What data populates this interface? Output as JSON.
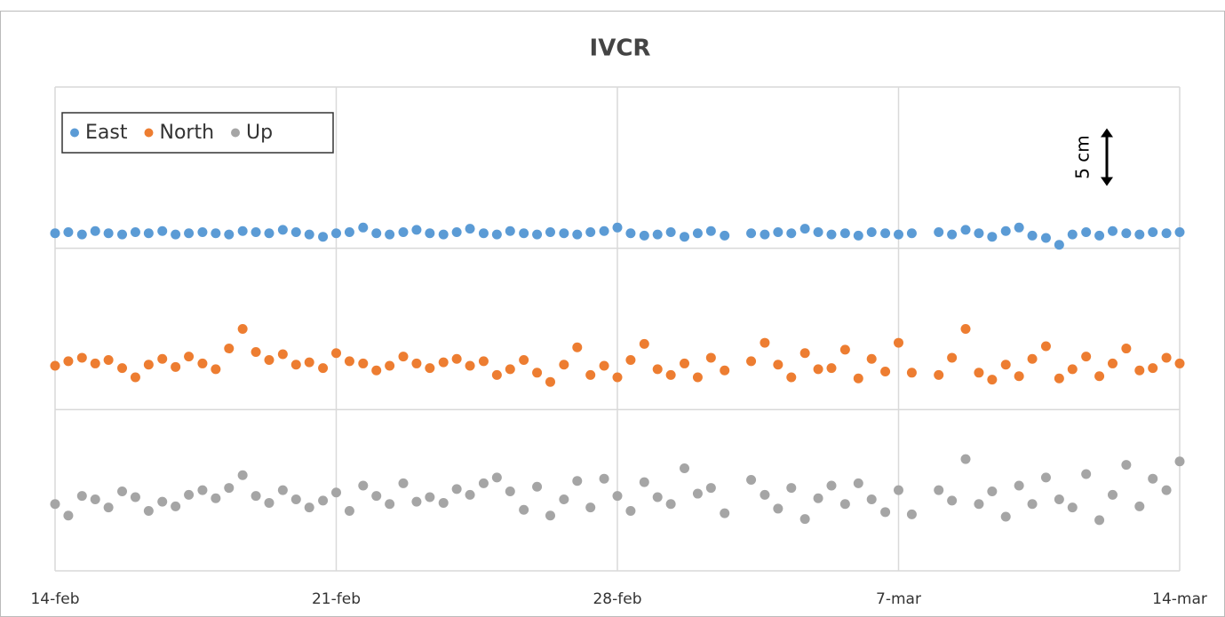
{
  "chart_data": {
    "type": "scatter",
    "title": "IVCR",
    "x": [
      0,
      0.33,
      0.67,
      1,
      1.33,
      1.67,
      2,
      2.33,
      2.67,
      3,
      3.33,
      3.67,
      4,
      4.33,
      4.67,
      5,
      5.33,
      5.67,
      6,
      6.33,
      6.67,
      7,
      7.33,
      7.67,
      8,
      8.33,
      8.67,
      9,
      9.33,
      9.67,
      10,
      10.33,
      10.67,
      11,
      11.33,
      11.67,
      12,
      12.33,
      12.67,
      13,
      13.33,
      13.67,
      14,
      14.33,
      14.67,
      15,
      15.33,
      15.67,
      16,
      16.33,
      16.67,
      17,
      17.33,
      17.67,
      18,
      18.33,
      18.67,
      19,
      19.33,
      19.67,
      20,
      20.33,
      20.67,
      21,
      21.33,
      21.67,
      22,
      22.33,
      22.67,
      23,
      23.33,
      23.67,
      24,
      24.33,
      24.67,
      25,
      25.33,
      25.67,
      26,
      26.33,
      26.67,
      27,
      27.33,
      27.67,
      28
    ],
    "series": [
      {
        "name": "East",
        "color": "#5b9bd5",
        "values": [
          29.3,
          29.4,
          29.2,
          29.5,
          29.3,
          29.2,
          29.4,
          29.3,
          29.5,
          29.2,
          29.3,
          29.4,
          29.3,
          29.2,
          29.5,
          29.4,
          29.3,
          29.6,
          29.4,
          29.2,
          29.0,
          29.3,
          29.4,
          29.8,
          29.3,
          29.2,
          29.4,
          29.6,
          29.3,
          29.2,
          29.4,
          29.7,
          29.3,
          29.2,
          29.5,
          29.3,
          29.2,
          29.4,
          29.3,
          29.2,
          29.4,
          29.5,
          29.8,
          29.3,
          29.1,
          29.2,
          29.4,
          29.0,
          29.3,
          29.5,
          29.1,
          null,
          29.3,
          29.2,
          29.4,
          29.3,
          29.7,
          29.4,
          29.2,
          29.3,
          29.1,
          29.4,
          29.3,
          29.2,
          29.3,
          null,
          29.4,
          29.2,
          29.6,
          29.3,
          29.0,
          29.5,
          29.8,
          29.1,
          28.9,
          28.3,
          29.2,
          29.4,
          29.1,
          29.5,
          29.3,
          29.2,
          29.4,
          29.3,
          29.4
        ]
      },
      {
        "name": "North",
        "color": "#ed7d31",
        "values": [
          17.8,
          18.2,
          18.5,
          18.0,
          18.3,
          17.6,
          16.8,
          17.9,
          18.4,
          17.7,
          18.6,
          18.0,
          17.5,
          19.3,
          21.0,
          19.0,
          18.3,
          18.8,
          17.9,
          18.1,
          17.6,
          18.9,
          18.2,
          18.0,
          17.4,
          17.8,
          18.6,
          18.0,
          17.6,
          18.1,
          18.4,
          17.8,
          18.2,
          17.0,
          17.5,
          18.3,
          17.2,
          16.4,
          17.9,
          19.4,
          17.0,
          17.8,
          16.8,
          18.3,
          19.7,
          17.5,
          17.0,
          18.0,
          16.8,
          18.5,
          17.4,
          null,
          18.2,
          19.8,
          17.9,
          16.8,
          18.9,
          17.5,
          17.6,
          19.2,
          16.7,
          18.4,
          17.3,
          19.8,
          17.2,
          null,
          17.0,
          18.5,
          21.0,
          17.2,
          16.6,
          17.9,
          16.9,
          18.4,
          19.5,
          16.7,
          17.5,
          18.6,
          16.9,
          18.0,
          19.3,
          17.4,
          17.6,
          18.5,
          18.0
        ]
      },
      {
        "name": "Up",
        "color": "#a5a5a5",
        "values": [
          5.8,
          4.8,
          6.5,
          6.2,
          5.5,
          6.9,
          6.4,
          5.2,
          6.0,
          5.6,
          6.6,
          7.0,
          6.3,
          7.2,
          8.3,
          6.5,
          5.9,
          7.0,
          6.2,
          5.5,
          6.1,
          6.8,
          5.2,
          7.4,
          6.5,
          5.8,
          7.6,
          6.0,
          6.4,
          5.9,
          7.1,
          6.6,
          7.6,
          8.1,
          6.9,
          5.3,
          7.3,
          4.8,
          6.2,
          7.8,
          5.5,
          8.0,
          6.5,
          5.2,
          7.7,
          6.4,
          5.8,
          8.9,
          6.7,
          7.2,
          5.0,
          null,
          7.9,
          6.6,
          5.4,
          7.2,
          4.5,
          6.3,
          7.4,
          5.8,
          7.6,
          6.2,
          5.1,
          7.0,
          4.9,
          null,
          7.0,
          6.1,
          9.7,
          5.8,
          6.9,
          4.7,
          7.4,
          5.8,
          8.1,
          6.2,
          5.5,
          8.4,
          4.4,
          6.6,
          9.2,
          5.6,
          8.0,
          7.0,
          9.5
        ]
      }
    ],
    "xlim": [
      0,
      28
    ],
    "xticks": [
      {
        "value": 0,
        "label": "14-feb"
      },
      {
        "value": 7,
        "label": "21-feb"
      },
      {
        "value": 14,
        "label": "28-feb"
      },
      {
        "value": 21,
        "label": "7-mar"
      },
      {
        "value": 28,
        "label": "14-mar"
      }
    ],
    "ylim": [
      0,
      42
    ],
    "ygrid": [
      0,
      14,
      28,
      42
    ],
    "grid": true,
    "legend": "top-left",
    "scale_bar": {
      "label": "5 cm",
      "value": 5
    }
  }
}
